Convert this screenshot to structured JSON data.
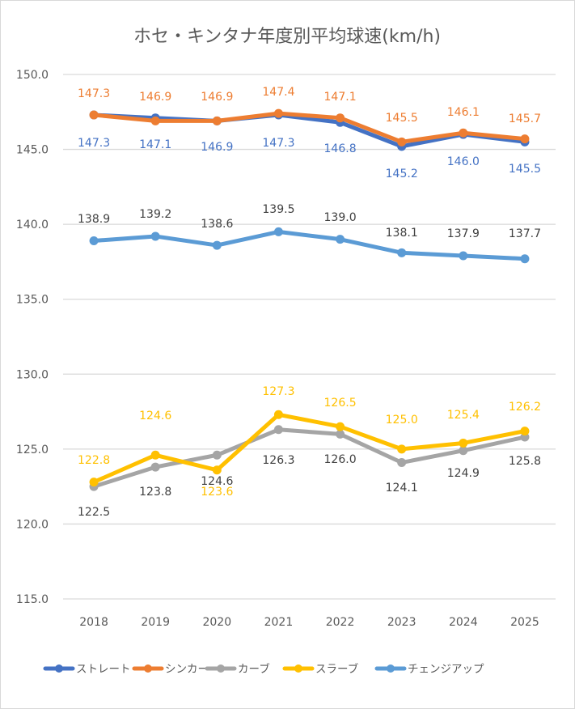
{
  "chart_data": {
    "type": "line",
    "title": "ホセ・キンタナ年度別平均球速(km/h)",
    "xlabel": "",
    "ylabel": "",
    "categories": [
      "2018",
      "2019",
      "2020",
      "2021",
      "2022",
      "2023",
      "2024",
      "2025"
    ],
    "ylim": [
      115.0,
      150.0
    ],
    "yticks": [
      "150.0",
      "145.0",
      "140.0",
      "135.0",
      "130.0",
      "125.0",
      "120.0",
      "115.0"
    ],
    "ytick_values": [
      150,
      145,
      140,
      135,
      130,
      125,
      120,
      115
    ],
    "grid": true,
    "legend": "bottom",
    "series": [
      {
        "name": "ストレート",
        "color": "#4472c4",
        "values": [
          147.3,
          147.1,
          146.9,
          147.3,
          146.8,
          145.2,
          146.0,
          145.5
        ],
        "labels": [
          "147.3",
          "147.1",
          "146.9",
          "147.3",
          "146.8",
          "145.2",
          "146.0",
          "145.5"
        ],
        "label_position": "below"
      },
      {
        "name": "シンカー",
        "color": "#ed7d31",
        "values": [
          147.3,
          146.9,
          146.9,
          147.4,
          147.1,
          145.5,
          146.1,
          145.7
        ],
        "labels": [
          "147.3",
          "146.9",
          "146.9",
          "147.4",
          "147.1",
          "145.5",
          "146.1",
          "145.7"
        ],
        "label_position": "above"
      },
      {
        "name": "カーブ",
        "color": "#a5a5a5",
        "label_color": "#404040",
        "values": [
          122.5,
          123.8,
          124.6,
          126.3,
          126.0,
          124.1,
          124.9,
          125.8
        ],
        "labels": [
          "122.5",
          "123.8",
          "124.6",
          "126.3",
          "126.0",
          "124.1",
          "124.9",
          "125.8"
        ],
        "label_position": "mixed"
      },
      {
        "name": "スラーブ",
        "color": "#ffc000",
        "values": [
          122.8,
          124.6,
          123.6,
          127.3,
          126.5,
          125.0,
          125.4,
          126.2
        ],
        "labels": [
          "122.8",
          "124.6",
          "123.6",
          "127.3",
          "126.5",
          "125.0",
          "125.4",
          "126.2"
        ],
        "label_position": "mixed"
      },
      {
        "name": "チェンジアップ",
        "color": "#5b9bd5",
        "label_color": "#404040",
        "values": [
          138.9,
          139.2,
          138.6,
          139.5,
          139.0,
          138.1,
          137.9,
          137.7
        ],
        "labels": [
          "138.9",
          "139.2",
          "138.6",
          "139.5",
          "139.0",
          "138.1",
          "137.9",
          "137.7"
        ],
        "label_position": "above"
      }
    ]
  }
}
